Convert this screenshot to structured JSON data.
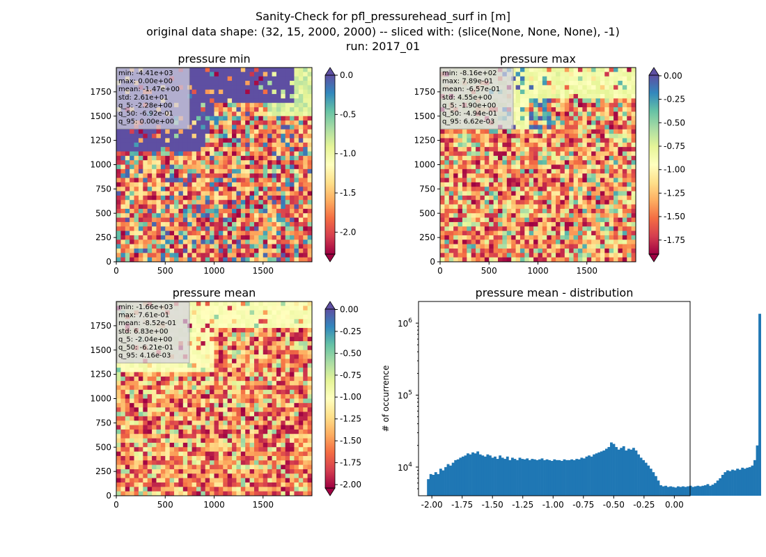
{
  "figure": {
    "title_lines": [
      "Sanity-Check for pfl_pressurehead_surf in [m]",
      "original data shape: (32, 15, 2000, 2000) -- sliced with: (slice(None, None, None), -1)",
      "run: 2017_01"
    ]
  },
  "chart_data": [
    {
      "type": "heatmap",
      "title": "pressure min",
      "colormap": "Spectral",
      "extend": "both",
      "xlim": [
        0,
        2000
      ],
      "ylim": [
        0,
        2000
      ],
      "xticks": [
        0,
        500,
        1000,
        1500
      ],
      "yticks": [
        0,
        250,
        500,
        750,
        1000,
        1250,
        1500,
        1750
      ],
      "colorbar": {
        "range": [
          -2.28,
          0.0
        ],
        "ticks": [
          "0.0",
          "-0.5",
          "-1.0",
          "-1.5",
          "-2.0"
        ],
        "tick_values": [
          0.0,
          -0.5,
          -1.0,
          -1.5,
          -2.0
        ]
      },
      "stats": [
        "min: -4.41e+03",
        "max: 0.00e+00",
        "mean: -1.47e+00",
        "std: 2.61e+01",
        "q_5: -2.28e+00",
        "q_50: -6.92e-01",
        "q_95: 0.00e+00"
      ]
    },
    {
      "type": "heatmap",
      "title": "pressure max",
      "colormap": "Spectral",
      "extend": "both",
      "xlim": [
        0,
        2000
      ],
      "ylim": [
        0,
        2000
      ],
      "xticks": [
        0,
        500,
        1000,
        1500
      ],
      "yticks": [
        0,
        250,
        500,
        750,
        1000,
        1250,
        1500,
        1750
      ],
      "colorbar": {
        "range": [
          -1.9,
          0.0066
        ],
        "ticks": [
          "0.00",
          "-0.25",
          "-0.50",
          "-0.75",
          "-1.00",
          "-1.25",
          "-1.50",
          "-1.75"
        ],
        "tick_values": [
          0.0,
          -0.25,
          -0.5,
          -0.75,
          -1.0,
          -1.25,
          -1.5,
          -1.75
        ]
      },
      "stats": [
        "min: -8.16e+02",
        "max: 7.89e-01",
        "mean: -6.57e-01",
        "std: 4.55e+00",
        "q_5: -1.90e+00",
        "q_50: -4.94e-01",
        "q_95: 6.62e-03"
      ]
    },
    {
      "type": "heatmap",
      "title": "pressure mean",
      "colormap": "Spectral",
      "extend": "both",
      "xlim": [
        0,
        2000
      ],
      "ylim": [
        0,
        2000
      ],
      "xticks": [
        0,
        500,
        1000,
        1500
      ],
      "yticks": [
        0,
        250,
        500,
        750,
        1000,
        1250,
        1500,
        1750
      ],
      "colorbar": {
        "range": [
          -2.04,
          0.0042
        ],
        "ticks": [
          "0.00",
          "-0.25",
          "-0.50",
          "-0.75",
          "-1.00",
          "-1.25",
          "-1.50",
          "-1.75",
          "-2.00"
        ],
        "tick_values": [
          0.0,
          -0.25,
          -0.5,
          -0.75,
          -1.0,
          -1.25,
          -1.5,
          -1.75,
          -2.0
        ]
      },
      "stats": [
        "min: -1.66e+03",
        "max: 7.61e-01",
        "mean: -8.52e-01",
        "std: 6.83e+00",
        "q_5: -2.04e+00",
        "q_50: -6.21e-01",
        "q_95: 4.16e-03"
      ]
    },
    {
      "type": "bar",
      "subtype": "histogram",
      "title": "pressure mean - distribution",
      "xlabel": "",
      "ylabel": "# of occurrence",
      "yscale": "log",
      "xlim": [
        -2.11,
        0.13
      ],
      "ylim": [
        4000,
        2000000
      ],
      "xticks": [
        "-2.00",
        "-1.75",
        "-1.50",
        "-1.25",
        "-1.00",
        "-0.75",
        "-0.50",
        "-0.25",
        "0.00"
      ],
      "xtick_values": [
        -2.0,
        -1.75,
        -1.5,
        -1.25,
        -1.0,
        -0.75,
        -0.5,
        -0.25,
        0.0
      ],
      "yticks": [
        {
          "base": "10",
          "exp": "4",
          "value": 10000
        },
        {
          "base": "10",
          "exp": "5",
          "value": 100000
        },
        {
          "base": "10",
          "exp": "6",
          "value": 1000000
        }
      ],
      "color": "#1f77b4",
      "bin_start": -2.04,
      "bin_width": 0.0204,
      "counts": [
        6800,
        8000,
        7800,
        8500,
        8000,
        9500,
        9000,
        10000,
        11000,
        10500,
        11500,
        12500,
        12800,
        13500,
        14000,
        14500,
        15500,
        15000,
        16000,
        15500,
        16500,
        15000,
        14500,
        14000,
        15000,
        14500,
        13500,
        14000,
        13000,
        14500,
        13500,
        13000,
        14000,
        12500,
        13500,
        13000,
        12500,
        13500,
        13000,
        12800,
        13200,
        12500,
        13000,
        12800,
        12500,
        12800,
        13200,
        12500,
        12800,
        12500,
        12200,
        12800,
        12500,
        12500,
        12200,
        12800,
        12500,
        12500,
        12800,
        12500,
        13000,
        12800,
        13500,
        13200,
        14000,
        14500,
        14000,
        15000,
        15500,
        16000,
        16500,
        17000,
        18000,
        19000,
        22000,
        21000,
        19000,
        17500,
        18500,
        19500,
        17000,
        18000,
        17500,
        18500,
        17000,
        15000,
        13500,
        12500,
        11500,
        10500,
        9500,
        8500,
        7500,
        6500,
        5600,
        5400,
        5500,
        5300,
        5400,
        5300,
        5200,
        5400,
        5300,
        5400,
        5300,
        5400,
        5500,
        5300,
        5400,
        5500,
        5400,
        5500,
        5600,
        5800,
        5500,
        5700,
        6000,
        6500,
        7000,
        7800,
        8500,
        9000,
        8800,
        9200,
        9000,
        9500,
        9200,
        9800,
        9500,
        9800,
        10000,
        10500,
        12500,
        20000,
        1350000
      ]
    }
  ]
}
